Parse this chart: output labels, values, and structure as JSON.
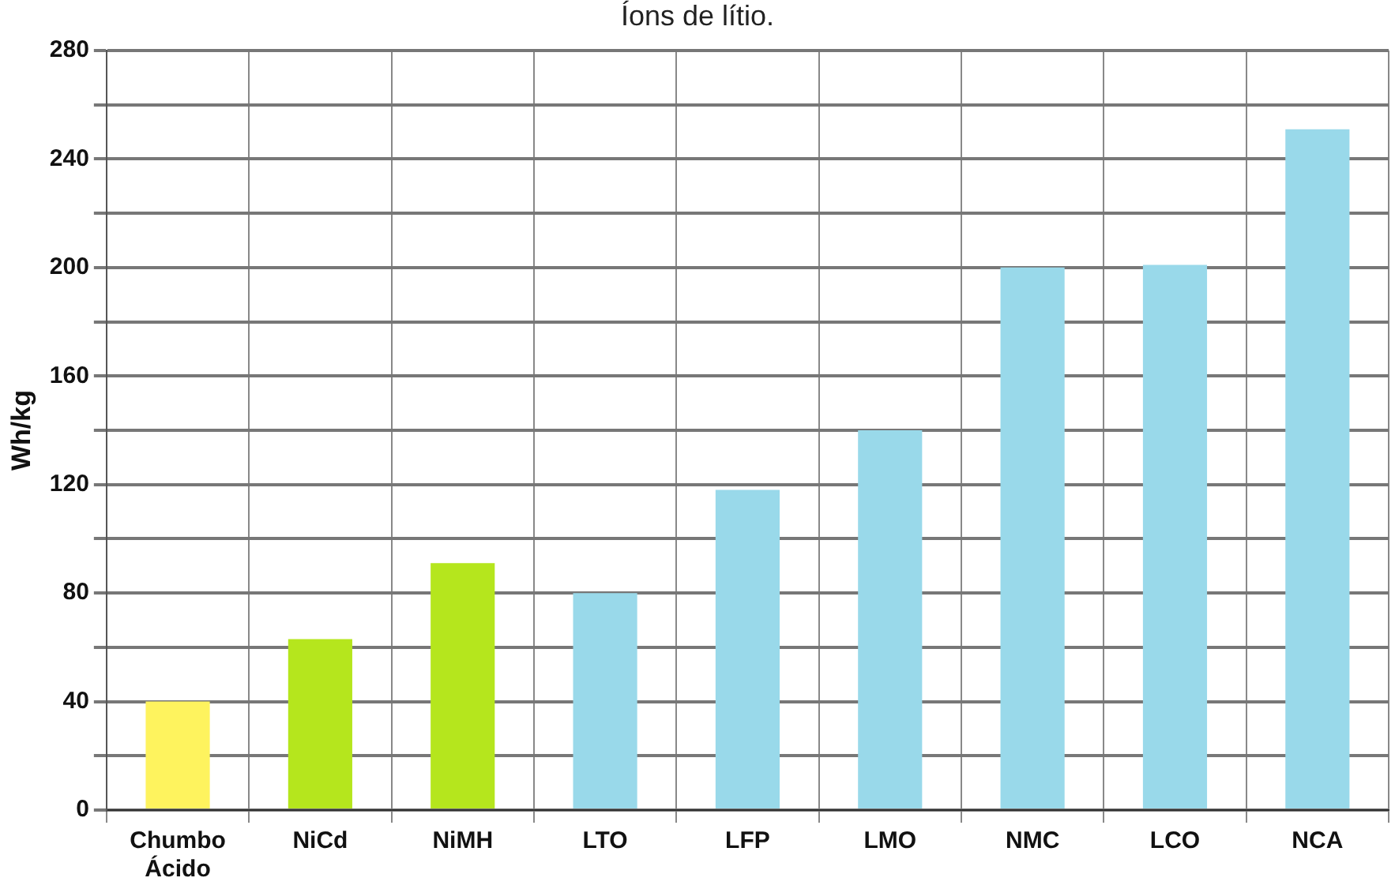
{
  "chart_data": {
    "type": "bar",
    "title": "Íons de lítio.",
    "ylabel": "Wh/kg",
    "categories": [
      "Chumbo Ácido",
      "NiCd",
      "NiMH",
      "LTO",
      "LFP",
      "LMO",
      "NMC",
      "LCO",
      "NCA"
    ],
    "values": [
      40,
      63,
      91,
      80,
      118,
      140,
      200,
      201,
      251
    ],
    "colors": [
      "#fef35e",
      "#b5e61d",
      "#b5e61d",
      "#99d9ea",
      "#99d9ea",
      "#99d9ea",
      "#99d9ea",
      "#99d9ea",
      "#99d9ea"
    ],
    "ylim": [
      0,
      280
    ],
    "yticks": [
      0,
      {
        "value": 20,
        "label": null
      },
      40,
      {
        "value": 60,
        "label": null
      },
      80,
      {
        "value": 100,
        "label": null
      },
      120,
      {
        "value": 140,
        "label": null
      },
      160,
      {
        "value": 180,
        "label": null
      },
      200,
      {
        "value": 220,
        "label": null
      },
      240,
      {
        "value": 260,
        "label": null
      },
      280
    ],
    "grid": true,
    "legend": false
  }
}
